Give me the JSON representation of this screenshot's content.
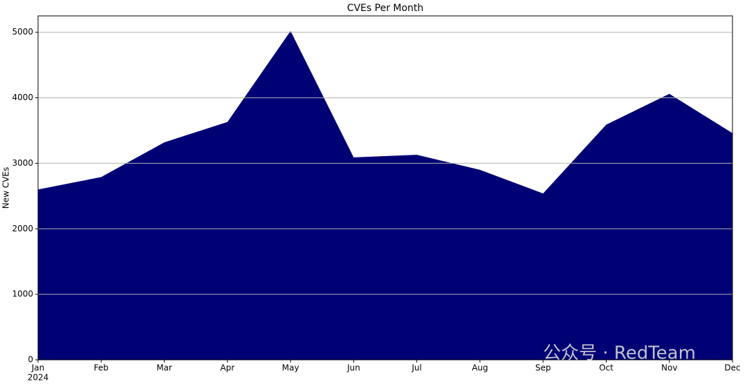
{
  "chart_data": {
    "type": "area",
    "title": "CVEs Per Month",
    "y_label": "New CVEs",
    "categories": [
      "Jan",
      "Feb",
      "Mar",
      "Apr",
      "May",
      "Jun",
      "Jul",
      "Aug",
      "Sep",
      "Oct",
      "Nov",
      "Dec"
    ],
    "year_label": "2024",
    "values": [
      2600,
      2790,
      3320,
      3630,
      5020,
      3090,
      3130,
      2900,
      2540,
      3590,
      4060,
      3460
    ],
    "color": "#000075",
    "ylim": [
      0,
      5250
    ],
    "yticks": [
      0,
      1000,
      2000,
      3000,
      4000,
      5000
    ],
    "grid": true,
    "watermark": "公众号 · RedTeam"
  }
}
